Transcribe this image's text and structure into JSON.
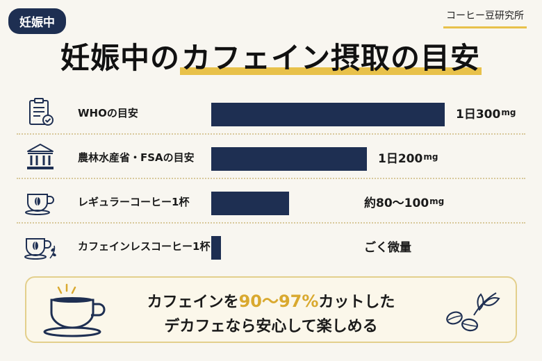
{
  "tag": "妊娠中",
  "brand": "コーヒー豆研究所",
  "title": {
    "pre": "妊娠中の",
    "highlight": "カフェイン摂取の目安"
  },
  "chart_data": {
    "type": "bar",
    "orientation": "horizontal",
    "unit": "mg",
    "categories": [
      "WHOの目安",
      "農林水産省・FSAの目安",
      "レギュラーコーヒー1杯",
      "カフェインレスコーヒー1杯"
    ],
    "values": [
      300,
      200,
      100,
      10
    ],
    "value_labels": [
      {
        "num": "1日300",
        "unit": "mg"
      },
      {
        "num": "1日200",
        "unit": "mg"
      },
      {
        "num": "約80〜100",
        "unit": "mg"
      },
      {
        "num": "ごく微量",
        "unit": ""
      }
    ],
    "icons": [
      "clipboard-check-icon",
      "government-building-icon",
      "coffee-cup-icon",
      "decaf-cup-icon"
    ],
    "xlim": [
      0,
      300
    ],
    "bar_color": "#1e2f52"
  },
  "note": {
    "line1_pre": "カフェインを",
    "line1_accent": "90〜97%",
    "line1_post": "カットした",
    "line2": "デカフェなら安心して楽しめる"
  },
  "colors": {
    "navy": "#1e2f52",
    "gold": "#e8c14a",
    "accent": "#d9a92f"
  }
}
